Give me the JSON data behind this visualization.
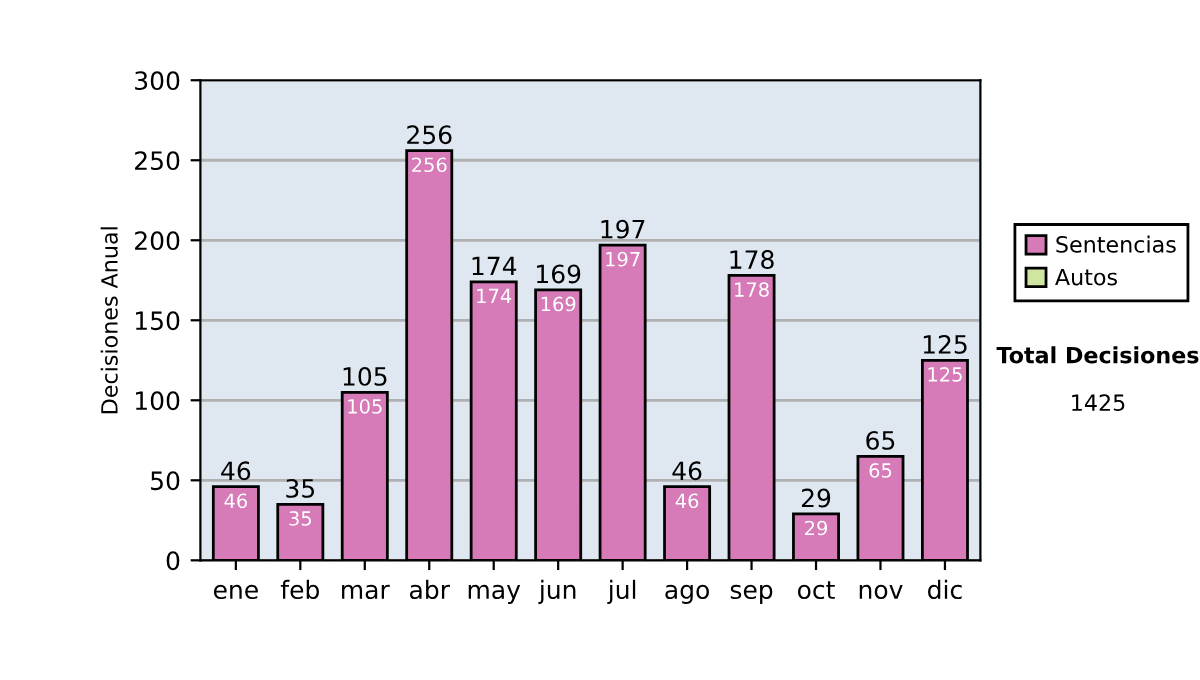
{
  "chart_data": {
    "type": "bar",
    "stacked": true,
    "ylabel": "Decisiones Anual",
    "categories": [
      "ene",
      "feb",
      "mar",
      "abr",
      "may",
      "jun",
      "jul",
      "ago",
      "sep",
      "oct",
      "nov",
      "dic"
    ],
    "series": [
      {
        "name": "Sentencias",
        "color": "#d67ab8",
        "values": [
          46,
          35,
          105,
          256,
          174,
          169,
          197,
          46,
          178,
          29,
          65,
          125
        ],
        "value_labels": [
          "46",
          "35",
          "105",
          "256",
          "174",
          "169",
          "197",
          "46",
          "178",
          "29",
          "65",
          "125"
        ]
      },
      {
        "name": "Autos",
        "color": "#cfe6a0",
        "values": [
          null,
          null,
          null,
          null,
          null,
          null,
          null,
          null,
          null,
          null,
          null,
          null
        ]
      }
    ],
    "totals": [
      "46",
      "35",
      "105",
      "256",
      "174",
      "169",
      "197",
      "46",
      "178",
      "29",
      "65",
      "125"
    ],
    "ylim": [
      0,
      300
    ],
    "yticks": [
      0,
      50,
      100,
      150,
      200,
      250,
      300
    ],
    "grid": "y",
    "legend": "right",
    "annotations": [
      "Total Decisiones",
      "1425"
    ]
  }
}
